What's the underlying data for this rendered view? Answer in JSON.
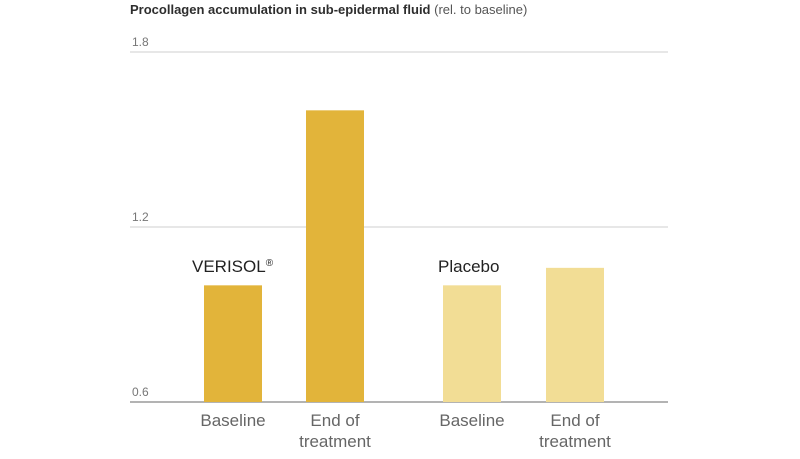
{
  "chart_data": {
    "type": "bar",
    "title": "Procollagen accumulation in sub-epidermal fluid",
    "title_unit": "(rel. to baseline)",
    "ylim": [
      0.6,
      1.8
    ],
    "yticks": [
      0.6,
      1.2,
      1.8
    ],
    "ytick_labels": [
      "0.6",
      "1.2",
      "1.8"
    ],
    "grid": true,
    "groups": [
      {
        "name": "VERISOL",
        "mark": "®",
        "color": "#E2B43A",
        "categories": [
          "Baseline",
          "End of treatment"
        ],
        "category_lines": [
          [
            "Baseline"
          ],
          [
            "End of",
            "treatment"
          ]
        ],
        "values": [
          1.0,
          1.6
        ]
      },
      {
        "name": "Placebo",
        "mark": "",
        "color": "#F2DD95",
        "categories": [
          "Baseline",
          "End of treatment"
        ],
        "category_lines": [
          [
            "Baseline"
          ],
          [
            "End of",
            "treatment"
          ]
        ],
        "values": [
          1.0,
          1.06
        ]
      }
    ]
  }
}
